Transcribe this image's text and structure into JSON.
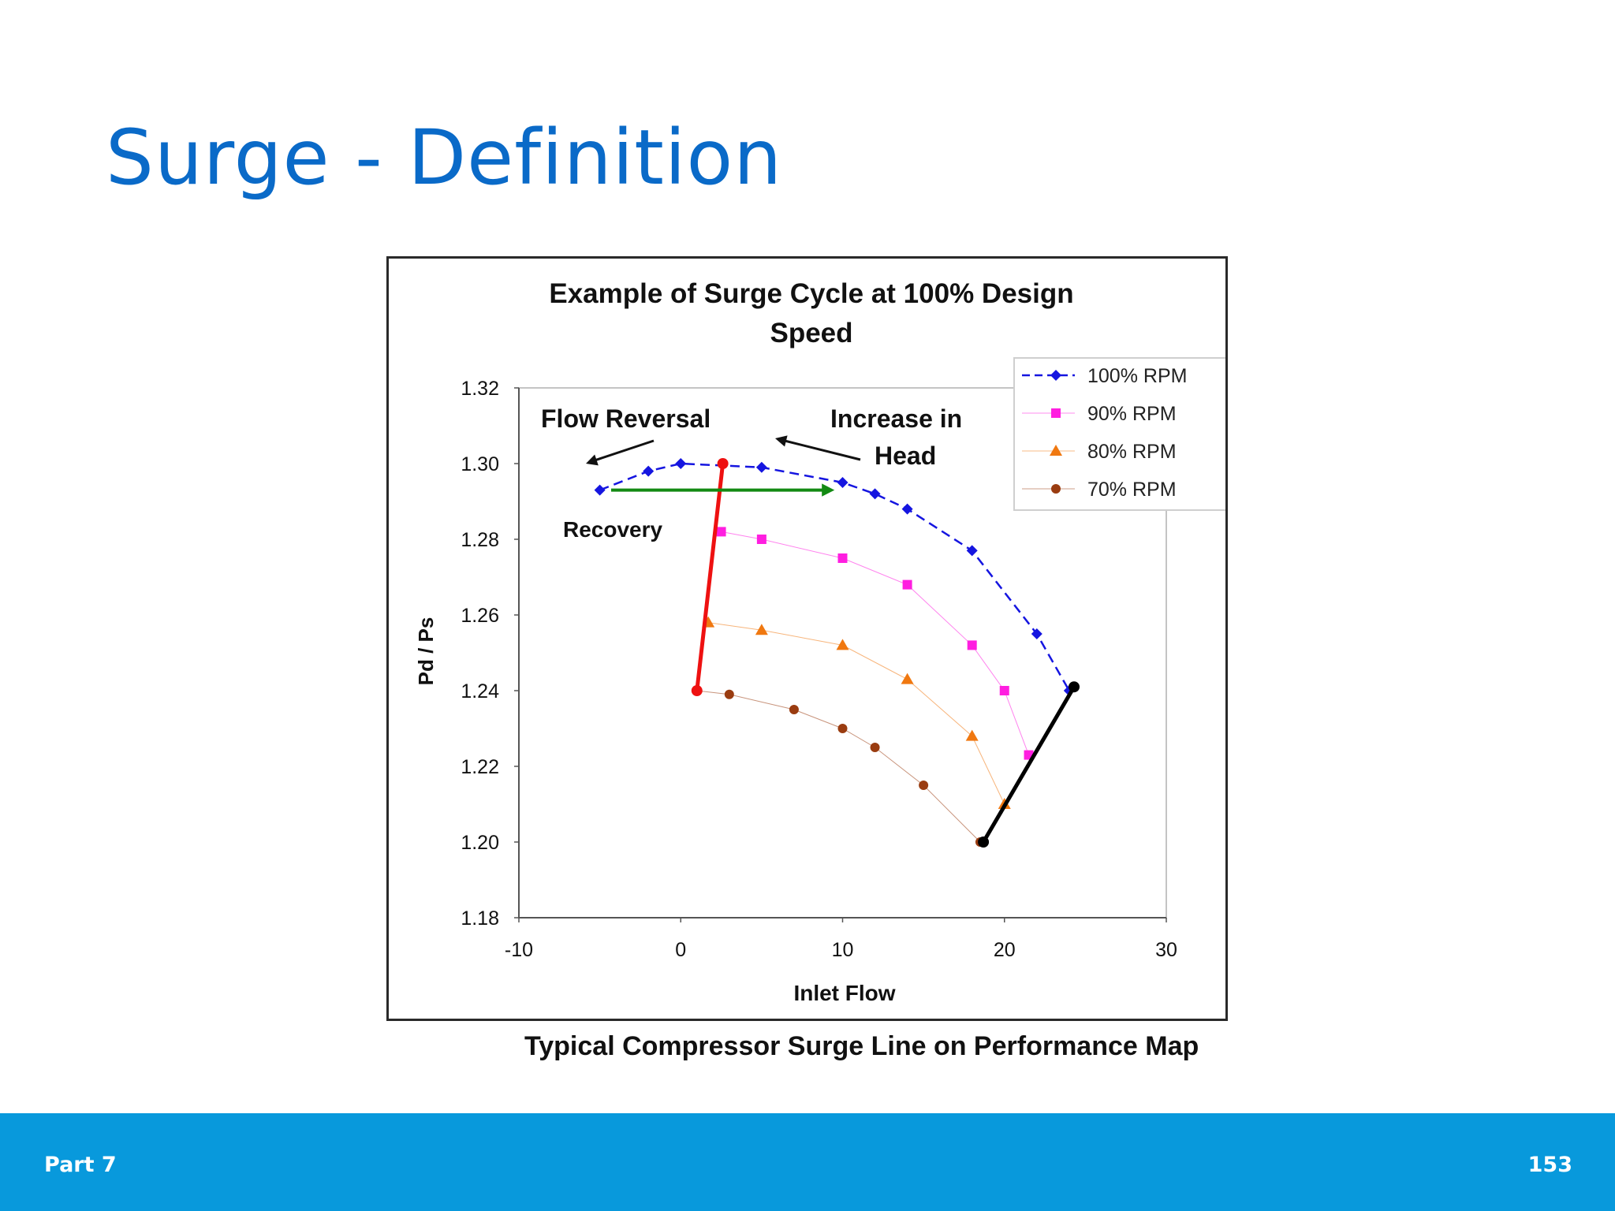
{
  "slide": {
    "title": "Surge - Definition",
    "caption": "Typical Compressor Surge Line on Performance Map",
    "footer_left": "Part 7",
    "page_number": "153"
  },
  "chart_data": {
    "type": "line",
    "title_lines": [
      "Example of Surge Cycle at 100% Design",
      "Speed"
    ],
    "xlabel": "Inlet Flow",
    "ylabel": "Pd / Ps",
    "xlim": [
      -10,
      30
    ],
    "ylim": [
      1.18,
      1.32
    ],
    "x_ticks": [
      "-10",
      "0",
      "10",
      "20",
      "30"
    ],
    "y_ticks": [
      "1.18",
      "1.20",
      "1.22",
      "1.24",
      "1.26",
      "1.28",
      "1.30",
      "1.32"
    ],
    "legend_position": "top-right",
    "series": [
      {
        "name": "100% RPM",
        "color": "#1515e0",
        "marker": "diamond",
        "line": "dashed",
        "points": [
          [
            -5,
            1.293
          ],
          [
            -2,
            1.298
          ],
          [
            0,
            1.3
          ],
          [
            5,
            1.299
          ],
          [
            10,
            1.295
          ],
          [
            12,
            1.292
          ],
          [
            14,
            1.288
          ],
          [
            18,
            1.277
          ],
          [
            22,
            1.255
          ],
          [
            24,
            1.24
          ]
        ]
      },
      {
        "name": "90% RPM",
        "color": "#ff1ee0",
        "marker": "square",
        "line": "thin",
        "points": [
          [
            2.5,
            1.282
          ],
          [
            5,
            1.28
          ],
          [
            10,
            1.275
          ],
          [
            14,
            1.268
          ],
          [
            18,
            1.252
          ],
          [
            20,
            1.24
          ],
          [
            21.5,
            1.223
          ]
        ]
      },
      {
        "name": "80% RPM",
        "color": "#f07810",
        "marker": "triangle",
        "line": "thin",
        "points": [
          [
            1.7,
            1.258
          ],
          [
            5,
            1.256
          ],
          [
            10,
            1.252
          ],
          [
            14,
            1.243
          ],
          [
            18,
            1.228
          ],
          [
            20,
            1.21
          ]
        ]
      },
      {
        "name": "70% RPM",
        "color": "#9a3c10",
        "marker": "circle",
        "line": "thin",
        "points": [
          [
            1,
            1.24
          ],
          [
            3,
            1.239
          ],
          [
            7,
            1.235
          ],
          [
            10,
            1.23
          ],
          [
            12,
            1.225
          ],
          [
            15,
            1.215
          ],
          [
            18.5,
            1.2
          ]
        ]
      }
    ],
    "lines": [
      {
        "name": "surge-line",
        "color": "#ee1111",
        "points": [
          [
            1,
            1.24
          ],
          [
            2.6,
            1.3
          ]
        ]
      },
      {
        "name": "choke-line",
        "color": "#000000",
        "points": [
          [
            18.7,
            1.2
          ],
          [
            24.3,
            1.241
          ]
        ]
      }
    ],
    "recovery_arrow": {
      "color": "#138a13",
      "from": [
        -4.3,
        1.293
      ],
      "to": [
        9.5,
        1.293
      ]
    },
    "annotations": {
      "flow_reversal": "Flow Reversal",
      "increase_line1": "Increase in",
      "increase_line2": "Head",
      "recovery": "Recovery"
    }
  }
}
